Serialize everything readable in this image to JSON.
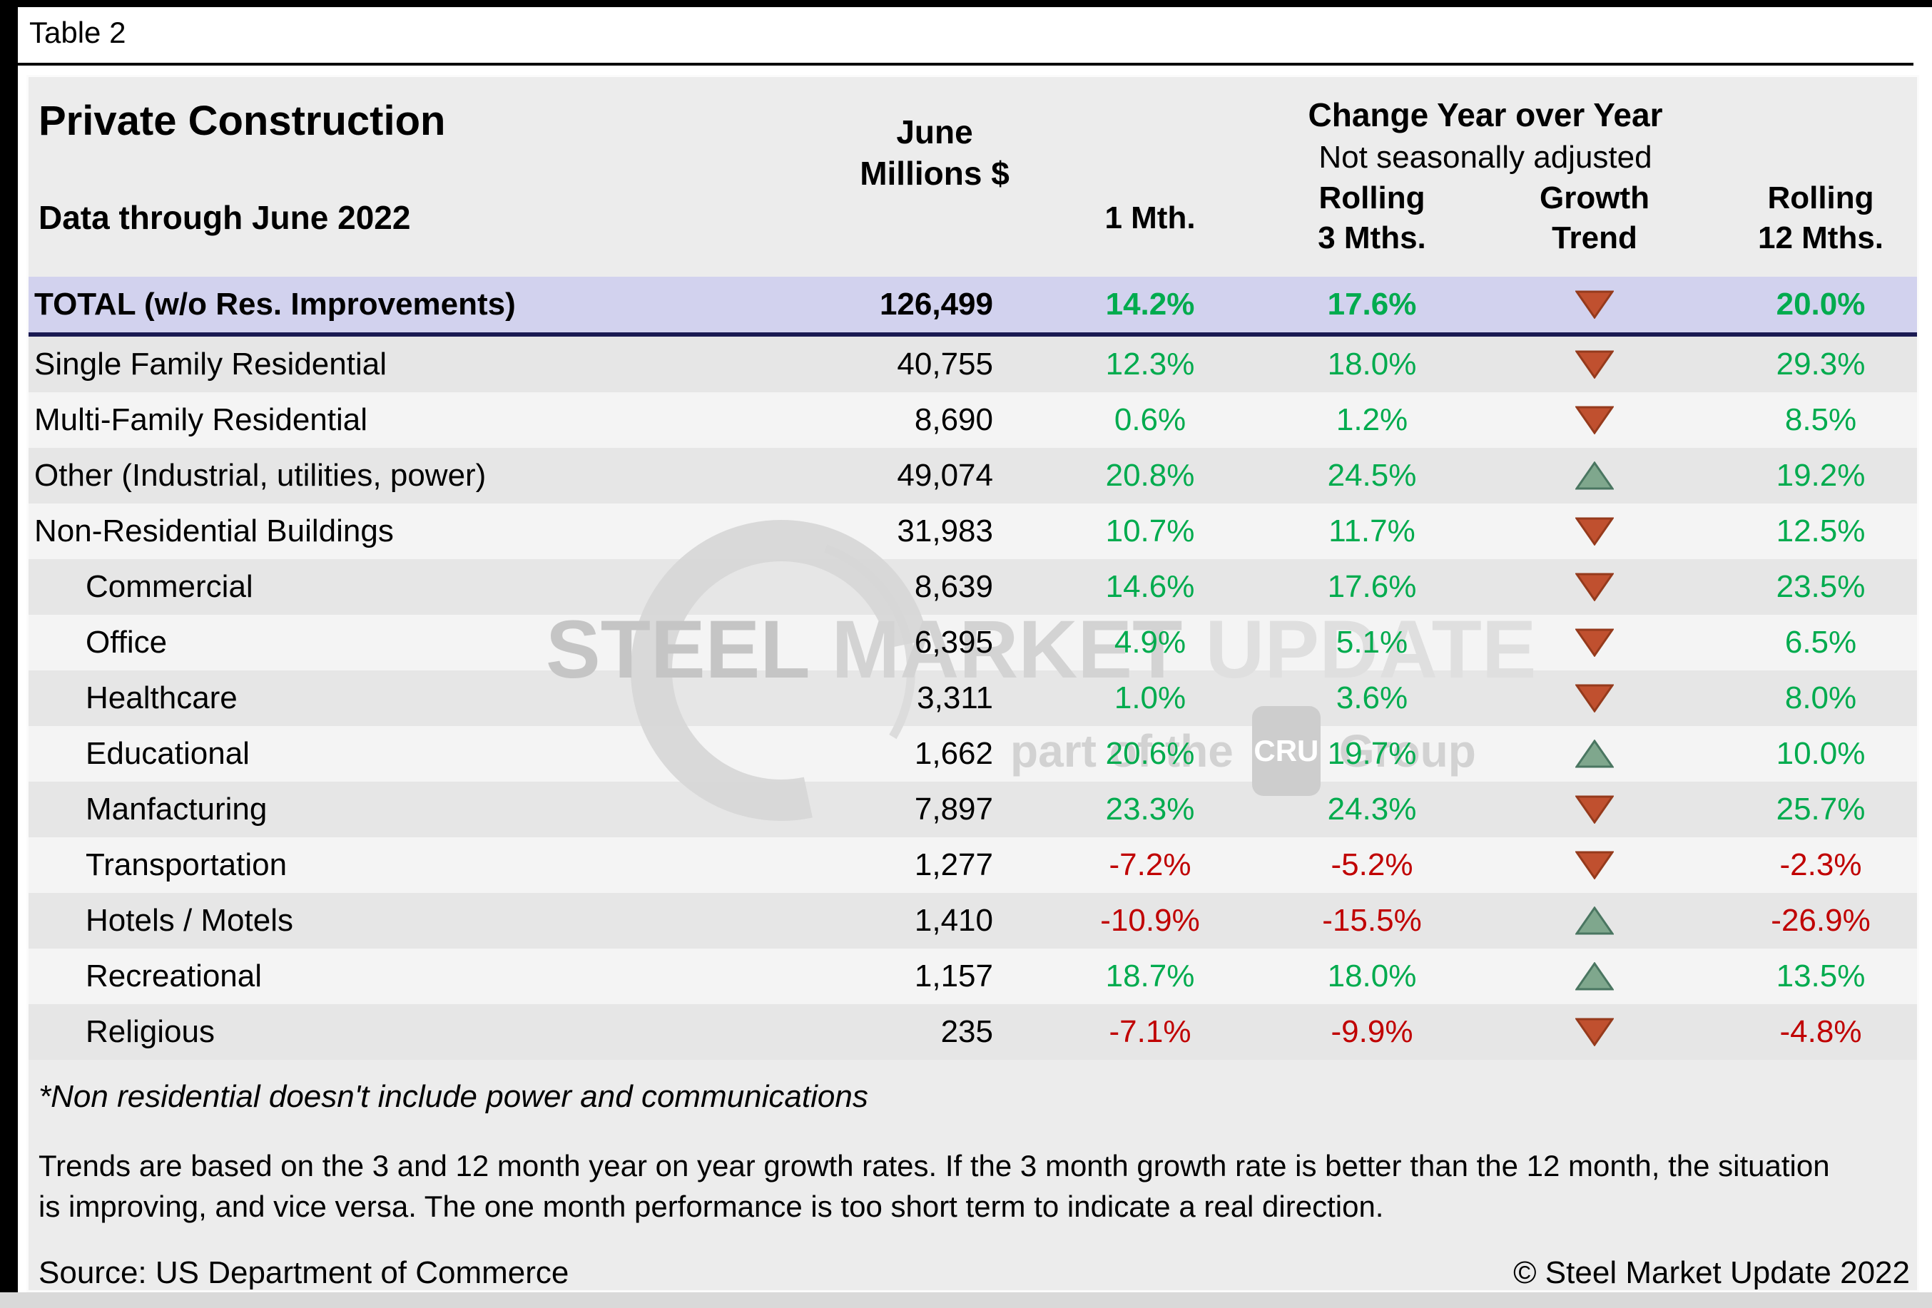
{
  "page": {
    "title_bar": "Table 2",
    "footnote": "*Non residential doesn't include power and communications",
    "trends_line1": "Trends are based on the 3 and 12 month year on year growth rates. If the 3 month growth rate is better than the 12 month, the situation",
    "trends_line2": "is improving, and vice versa. The one month performance is too short term to indicate a real direction.",
    "source": "Source: US Department of Commerce",
    "copyright": "© Steel Market Update 2022"
  },
  "header": {
    "title": "Private Construction",
    "subtitle": "Data through June 2022",
    "value_line1": "June",
    "value_line2": "Millions $",
    "change_title": "Change Year over Year",
    "change_subtitle": "Not seasonally adjusted",
    "col1_line1": "1 Mth.",
    "col2_line1": "Rolling",
    "col2_line2": "3 Mths.",
    "col3_line1": "Growth",
    "col3_line2": "Trend",
    "col4_line1": "Rolling",
    "col4_line2": "12 Mths."
  },
  "watermark": {
    "word1": "STEEL",
    "word2": "MARKET",
    "word3": "UPDATE",
    "cru_prefix": "part of the",
    "cru_badge": "CRU",
    "cru_suffix": "Group"
  },
  "colors": {
    "positive": "#00AB4E",
    "negative": "#C00000",
    "total_row_bg": "#D2D2EE",
    "total_border": "#1A1A52",
    "arrow_down_fill": "#C0502F",
    "arrow_down_stroke": "#953A1C",
    "arrow_up_fill": "#7FA78D",
    "arrow_up_stroke": "#4A7661"
  },
  "chart_data": {
    "type": "table",
    "title": "Private Construction",
    "data_through": "Data through June 2022",
    "value_column": "June Millions $",
    "change_columns": [
      "1 Mth.",
      "Rolling 3 Mths.",
      "Growth Trend",
      "Rolling 12 Mths."
    ],
    "rows": [
      {
        "label": "TOTAL (w/o Res. Improvements)",
        "value": "126,499",
        "m1": "14.2%",
        "m3": "17.6%",
        "trend": "down",
        "m12": "20.0%",
        "total": true,
        "indent": false
      },
      {
        "label": "Single Family Residential",
        "value": "40,755",
        "m1": "12.3%",
        "m3": "18.0%",
        "trend": "down",
        "m12": "29.3%",
        "total": false,
        "indent": false
      },
      {
        "label": "Multi-Family Residential",
        "value": "8,690",
        "m1": "0.6%",
        "m3": "1.2%",
        "trend": "down",
        "m12": "8.5%",
        "total": false,
        "indent": false
      },
      {
        "label": "Other (Industrial, utilities, power)",
        "value": "49,074",
        "m1": "20.8%",
        "m3": "24.5%",
        "trend": "up",
        "m12": "19.2%",
        "total": false,
        "indent": false
      },
      {
        "label": "Non-Residential Buildings",
        "value": "31,983",
        "m1": "10.7%",
        "m3": "11.7%",
        "trend": "down",
        "m12": "12.5%",
        "total": false,
        "indent": false
      },
      {
        "label": "Commercial",
        "value": "8,639",
        "m1": "14.6%",
        "m3": "17.6%",
        "trend": "down",
        "m12": "23.5%",
        "total": false,
        "indent": true
      },
      {
        "label": "Office",
        "value": "6,395",
        "m1": "4.9%",
        "m3": "5.1%",
        "trend": "down",
        "m12": "6.5%",
        "total": false,
        "indent": true
      },
      {
        "label": "Healthcare",
        "value": "3,311",
        "m1": "1.0%",
        "m3": "3.6%",
        "trend": "down",
        "m12": "8.0%",
        "total": false,
        "indent": true
      },
      {
        "label": "Educational",
        "value": "1,662",
        "m1": "20.6%",
        "m3": "19.7%",
        "trend": "up",
        "m12": "10.0%",
        "total": false,
        "indent": true
      },
      {
        "label": "Manfacturing",
        "value": "7,897",
        "m1": "23.3%",
        "m3": "24.3%",
        "trend": "down",
        "m12": "25.7%",
        "total": false,
        "indent": true
      },
      {
        "label": "Transportation",
        "value": "1,277",
        "m1": "-7.2%",
        "m3": "-5.2%",
        "trend": "down",
        "m12": "-2.3%",
        "total": false,
        "indent": true
      },
      {
        "label": "Hotels / Motels",
        "value": "1,410",
        "m1": "-10.9%",
        "m3": "-15.5%",
        "trend": "up",
        "m12": "-26.9%",
        "total": false,
        "indent": true
      },
      {
        "label": "Recreational",
        "value": "1,157",
        "m1": "18.7%",
        "m3": "18.0%",
        "trend": "up",
        "m12": "13.5%",
        "total": false,
        "indent": true
      },
      {
        "label": "Religious",
        "value": "235",
        "m1": "-7.1%",
        "m3": "-9.9%",
        "trend": "down",
        "m12": "-4.8%",
        "total": false,
        "indent": true
      }
    ]
  }
}
